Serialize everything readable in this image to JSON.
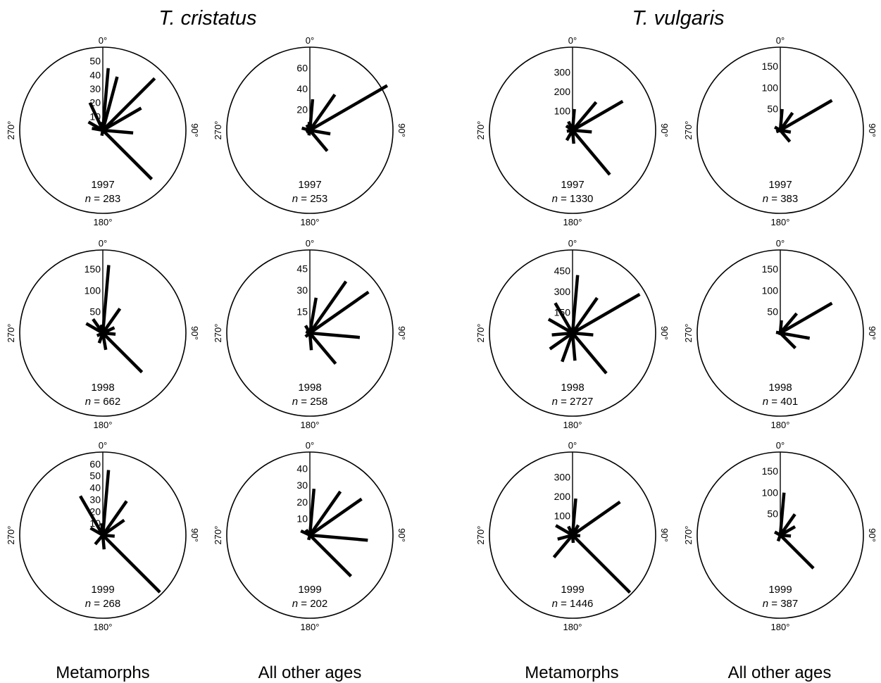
{
  "species_titles": [
    "T. cristatus",
    "T. vulgaris"
  ],
  "column_labels": [
    "Metamorphs",
    "All other ages",
    "Metamorphs",
    "All other ages"
  ],
  "cardinal_labels": {
    "north": "0°",
    "east": "90°",
    "south": "180°",
    "west": "270°"
  },
  "n_prefix": "n",
  "n_separator": " = ",
  "chart_data": [
    {
      "type": "rose",
      "species": "T. cristatus",
      "group": "Metamorphs",
      "year": "1997",
      "n": "283",
      "rmax": 60,
      "ticks": [
        10,
        20,
        30,
        40,
        50
      ],
      "directions_deg": [
        15,
        45,
        60,
        95,
        135,
        190,
        280,
        300,
        335,
        355,
        5
      ],
      "counts": [
        40,
        53,
        32,
        22,
        50,
        4,
        8,
        12,
        22,
        6,
        45
      ]
    },
    {
      "type": "rose",
      "species": "T. cristatus",
      "group": "All other ages",
      "year": "1997",
      "n": "253",
      "rmax": 80,
      "ticks": [
        20,
        40,
        60
      ],
      "directions_deg": [
        5,
        35,
        60,
        100,
        140,
        190,
        240,
        285,
        330,
        355
      ],
      "counts": [
        30,
        42,
        86,
        20,
        26,
        5,
        4,
        8,
        6,
        8
      ]
    },
    {
      "type": "rose",
      "species": "T. cristatus",
      "group": "Metamorphs",
      "year": "1998",
      "n": "662",
      "rmax": 195,
      "ticks": [
        50,
        100,
        150
      ],
      "directions_deg": [
        5,
        35,
        65,
        95,
        135,
        170,
        200,
        245,
        300,
        325,
        350
      ],
      "counts": [
        160,
        70,
        30,
        30,
        130,
        40,
        25,
        15,
        45,
        40,
        20
      ]
    },
    {
      "type": "rose",
      "species": "T. cristatus",
      "group": "All other ages",
      "year": "1998",
      "n": "258",
      "rmax": 58,
      "ticks": [
        15,
        30,
        45
      ],
      "directions_deg": [
        10,
        35,
        55,
        95,
        140,
        175,
        230,
        290,
        330
      ],
      "counts": [
        25,
        44,
        50,
        35,
        28,
        12,
        4,
        3,
        6
      ]
    },
    {
      "type": "rose",
      "species": "T. cristatus",
      "group": "Metamorphs",
      "year": "1999",
      "n": "268",
      "rmax": 70,
      "ticks": [
        10,
        20,
        30,
        40,
        50,
        60
      ],
      "directions_deg": [
        5,
        35,
        55,
        95,
        135,
        175,
        220,
        300,
        330,
        355
      ],
      "counts": [
        55,
        35,
        22,
        10,
        68,
        12,
        10,
        12,
        38,
        10
      ]
    },
    {
      "type": "rose",
      "species": "T. cristatus",
      "group": "All other ages",
      "year": "1999",
      "n": "202",
      "rmax": 50,
      "ticks": [
        10,
        20,
        30,
        40
      ],
      "directions_deg": [
        5,
        35,
        55,
        95,
        135,
        195,
        295,
        325
      ],
      "counts": [
        28,
        32,
        38,
        35,
        35,
        3,
        6,
        4
      ]
    },
    {
      "type": "rose",
      "species": "T. vulgaris",
      "group": "Metamorphs",
      "year": "1997",
      "n": "1330",
      "rmax": 430,
      "ticks": [
        100,
        200,
        300
      ],
      "directions_deg": [
        5,
        40,
        60,
        95,
        140,
        175,
        210,
        260,
        305,
        335
      ],
      "counts": [
        110,
        190,
        300,
        100,
        300,
        70,
        60,
        30,
        40,
        50
      ]
    },
    {
      "type": "rose",
      "species": "T. vulgaris",
      "group": "All other ages",
      "year": "1997",
      "n": "383",
      "rmax": 195,
      "ticks": [
        50,
        100,
        150
      ],
      "directions_deg": [
        5,
        35,
        60,
        100,
        140,
        200,
        250,
        300
      ],
      "counts": [
        50,
        50,
        140,
        25,
        35,
        5,
        10,
        15
      ]
    },
    {
      "type": "rose",
      "species": "T. vulgaris",
      "group": "Metamorphs",
      "year": "1998",
      "n": "2727",
      "rmax": 600,
      "ticks": [
        150,
        300,
        450
      ],
      "directions_deg": [
        5,
        35,
        60,
        95,
        140,
        175,
        200,
        235,
        265,
        300,
        330
      ],
      "counts": [
        420,
        310,
        560,
        150,
        380,
        200,
        220,
        200,
        150,
        200,
        250
      ]
    },
    {
      "type": "rose",
      "species": "T. vulgaris",
      "group": "All other ages",
      "year": "1998",
      "n": "401",
      "rmax": 195,
      "ticks": [
        50,
        100,
        150
      ],
      "directions_deg": [
        5,
        40,
        60,
        100,
        135,
        195,
        280
      ],
      "counts": [
        30,
        60,
        140,
        70,
        50,
        5,
        10
      ]
    },
    {
      "type": "rose",
      "species": "T. vulgaris",
      "group": "Metamorphs",
      "year": "1999",
      "n": "1446",
      "rmax": 430,
      "ticks": [
        100,
        200,
        300
      ],
      "directions_deg": [
        5,
        30,
        55,
        95,
        135,
        175,
        220,
        255,
        300,
        335
      ],
      "counts": [
        190,
        60,
        300,
        40,
        420,
        40,
        150,
        80,
        100,
        50
      ]
    },
    {
      "type": "rose",
      "species": "T. vulgaris",
      "group": "All other ages",
      "year": "1999",
      "n": "387",
      "rmax": 195,
      "ticks": [
        50,
        100,
        150
      ],
      "directions_deg": [
        5,
        35,
        60,
        95,
        135,
        200,
        300
      ],
      "counts": [
        100,
        60,
        40,
        25,
        110,
        15,
        15
      ]
    }
  ]
}
